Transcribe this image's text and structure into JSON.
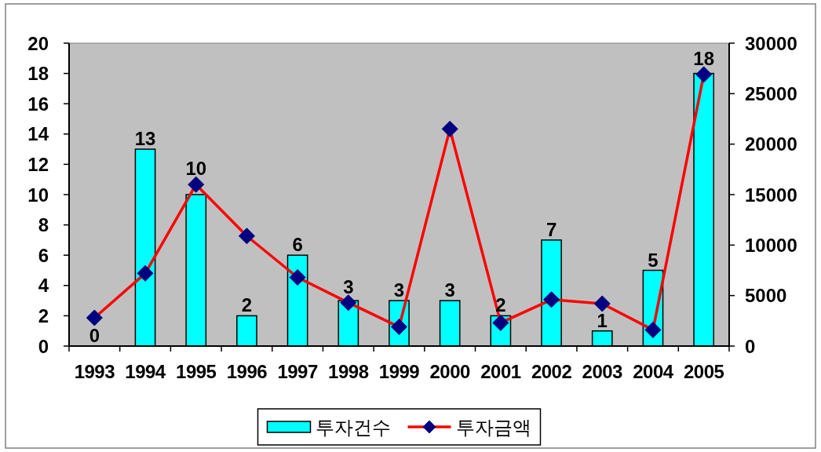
{
  "chart_data": {
    "type": "bar",
    "categories": [
      "1993",
      "1994",
      "1995",
      "1996",
      "1997",
      "1998",
      "1999",
      "2000",
      "2001",
      "2002",
      "2003",
      "2004",
      "2005"
    ],
    "series": [
      {
        "name": "투자건수",
        "color": "#00ffff",
        "values": [
          0,
          13,
          10,
          2,
          6,
          3,
          3,
          3,
          2,
          7,
          1,
          5,
          18
        ],
        "value_labels": [
          "0",
          "13",
          "10",
          "2",
          "6",
          "3",
          "3",
          "3",
          "2",
          "7",
          "1",
          "5",
          "18"
        ]
      },
      {
        "name": "투자금액",
        "type": "line",
        "axis": "y2",
        "color": "#ff0000",
        "marker": "diamond",
        "colors": [
          "#000080",
          "#000080",
          "#000080",
          "#000080",
          "#000080",
          "#000080",
          "#000080",
          "#000080",
          "#000080",
          "#000080",
          "#000080",
          "#000080",
          "#000080"
        ],
        "values": [
          2800,
          7200,
          16000,
          10900,
          6800,
          4300,
          1900,
          21500,
          2300,
          4600,
          4200,
          1600,
          26900
        ]
      }
    ],
    "ylim": [
      0,
      20
    ],
    "yticks": [
      0,
      2,
      4,
      6,
      8,
      10,
      12,
      14,
      16,
      18,
      20
    ],
    "y2lim": [
      0,
      30000
    ],
    "y2ticks": [
      0,
      5000,
      10000,
      15000,
      20000,
      25000,
      30000
    ],
    "legend": "bottom"
  }
}
